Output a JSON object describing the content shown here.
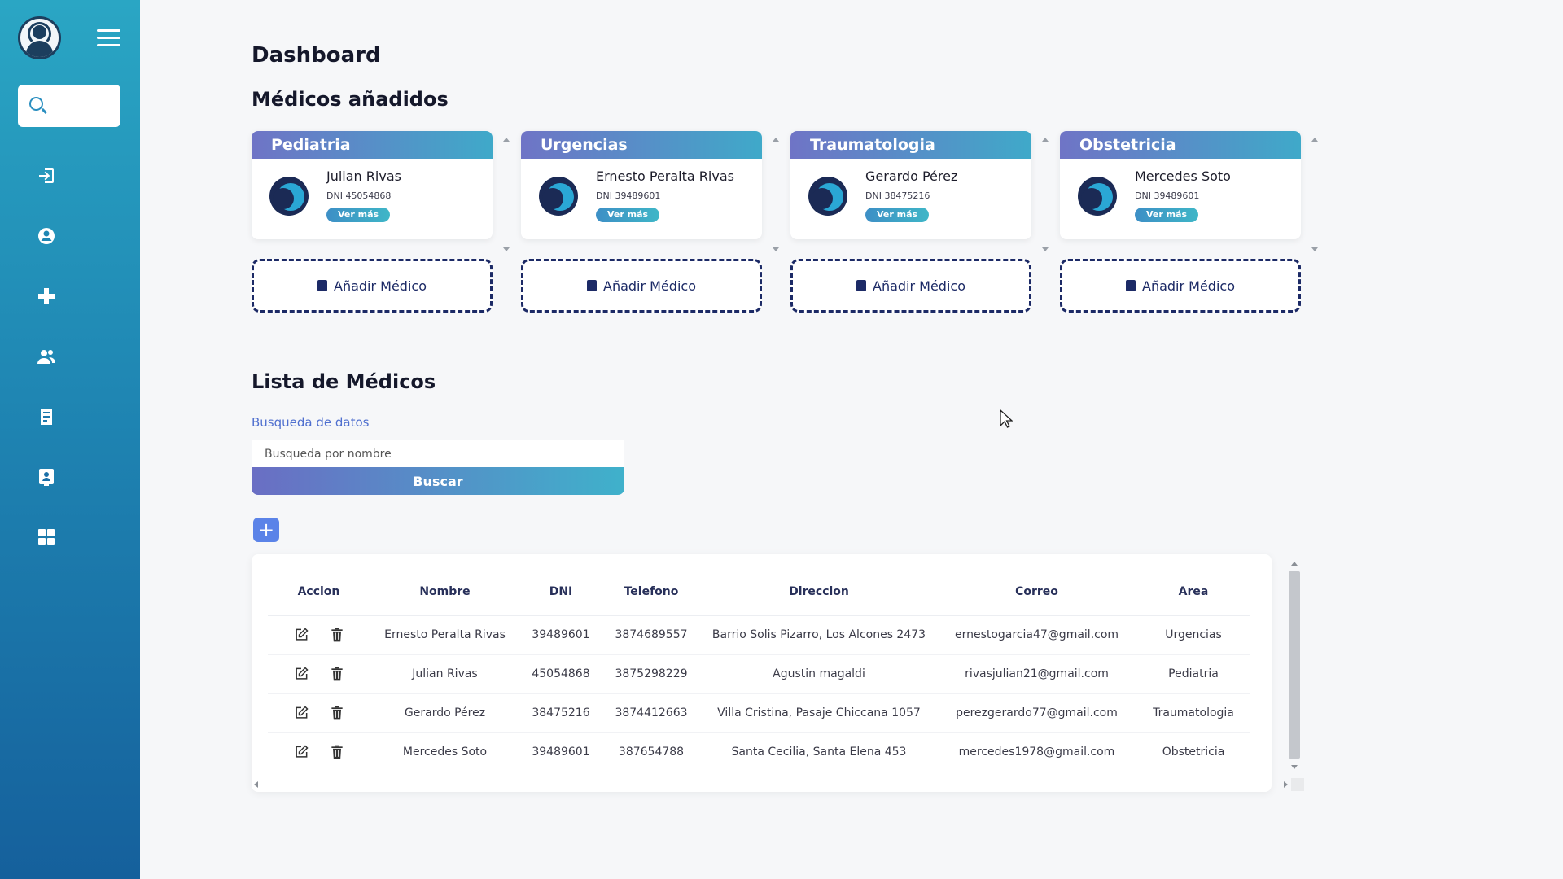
{
  "sidebar": {
    "search_placeholder": "",
    "icons": [
      "login-icon",
      "user-icon",
      "plus-medical-icon",
      "users-icon",
      "document-icon",
      "contact-card-icon",
      "grid-icon"
    ]
  },
  "header": {
    "title": "Dashboard"
  },
  "doctors_section": {
    "title": "Médicos añadidos",
    "add_label": "Añadir Médico",
    "columns": [
      {
        "area": "Pediatria",
        "name": "Julian Rivas",
        "dni": "DNI 45054868",
        "button": "Ver más"
      },
      {
        "area": "Urgencias",
        "name": "Ernesto Peralta Rivas",
        "dni": "DNI 39489601",
        "button": "Ver más"
      },
      {
        "area": "Traumatologia",
        "name": "Gerardo Pérez",
        "dni": "DNI 38475216",
        "button": "Ver más"
      },
      {
        "area": "Obstetricia",
        "name": "Mercedes Soto",
        "dni": "DNI 39489601",
        "button": "Ver más"
      }
    ]
  },
  "list_section": {
    "title": "Lista de Médicos",
    "search_label": "Busqueda de datos",
    "search_placeholder": "Busqueda por nombre",
    "search_button": "Buscar",
    "add_icon": "+"
  },
  "table": {
    "headers": [
      "Accion",
      "Nombre",
      "DNI",
      "Telefono",
      "Direccion",
      "Correo",
      "Area"
    ],
    "rows": [
      {
        "nombre": "Ernesto Peralta Rivas",
        "dni": "39489601",
        "telefono": "3874689557",
        "direccion": "Barrio Solis Pizarro, Los Alcones 2473",
        "correo": "ernestogarcia47@gmail.com",
        "area": "Urgencias"
      },
      {
        "nombre": "Julian Rivas",
        "dni": "45054868",
        "telefono": "3875298229",
        "direccion": "Agustin magaldi",
        "correo": "rivasjulian21@gmail.com",
        "area": "Pediatria"
      },
      {
        "nombre": "Gerardo Pérez",
        "dni": "38475216",
        "telefono": "3874412663",
        "direccion": "Villa Cristina, Pasaje Chiccana 1057",
        "correo": "perezgerardo77@gmail.com",
        "area": "Traumatologia"
      },
      {
        "nombre": "Mercedes Soto",
        "dni": "39489601",
        "telefono": "387654788",
        "direccion": "Santa Cecilia, Santa Elena 453",
        "correo": "mercedes1978@gmail.com",
        "area": "Obstetricia"
      }
    ]
  },
  "colors": {
    "sidebar_top": "#2aa6c4",
    "sidebar_bottom": "#15609c",
    "card_header_start": "#6f74c6",
    "card_header_end": "#3fa9c9",
    "accent_blue": "#5b83e8",
    "dashed_border": "#1c2a66"
  }
}
